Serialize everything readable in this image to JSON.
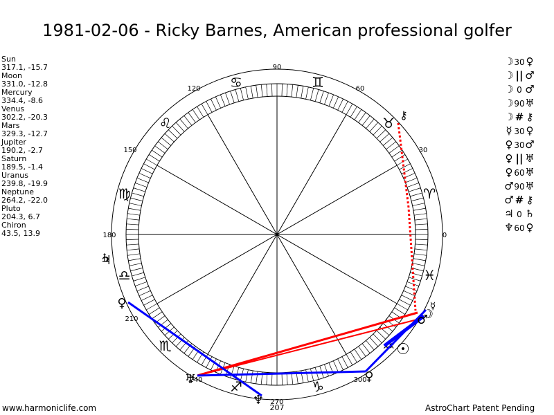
{
  "title": "1981-02-06 - Ricky Barnes, American professional golfer",
  "planets": [
    {
      "name": "Sun",
      "coords": "317.1, -15.7"
    },
    {
      "name": "Moon",
      "coords": "331.0, -12.8"
    },
    {
      "name": "Mercury",
      "coords": "334.4, -8.6"
    },
    {
      "name": "Venus",
      "coords": "302.2, -20.3"
    },
    {
      "name": "Mars",
      "coords": "329.3, -12.7"
    },
    {
      "name": "Jupiter",
      "coords": "190.2, -2.7"
    },
    {
      "name": "Saturn",
      "coords": "189.5, -1.4"
    },
    {
      "name": "Uranus",
      "coords": "239.8, -19.9"
    },
    {
      "name": "Neptune",
      "coords": "264.2, -22.0"
    },
    {
      "name": "Pluto",
      "coords": "204.3, 6.7"
    },
    {
      "name": "Chiron",
      "coords": "43.5, 13.9"
    }
  ],
  "aspects": [
    {
      "p1": "☽",
      "mid": "30",
      "p2": "♀"
    },
    {
      "p1": "☽",
      "mid": "||",
      "p2": "♂"
    },
    {
      "p1": "☽",
      "mid": "0",
      "p2": "♂"
    },
    {
      "p1": "☽",
      "mid": "90",
      "p2": "♅"
    },
    {
      "p1": "☽",
      "mid": "#",
      "p2": "⚷"
    },
    {
      "p1": "☿",
      "mid": "30",
      "p2": "♀"
    },
    {
      "p1": "♀",
      "mid": "30",
      "p2": "♂"
    },
    {
      "p1": "♀",
      "mid": "||",
      "p2": "♅"
    },
    {
      "p1": "♀",
      "mid": "60",
      "p2": "♅"
    },
    {
      "p1": "♂",
      "mid": "90",
      "p2": "♅"
    },
    {
      "p1": "♂",
      "mid": "#",
      "p2": "⚷"
    },
    {
      "p1": "♃",
      "mid": "0",
      "p2": "♄"
    },
    {
      "p1": "♆",
      "mid": "60",
      "p2": "♀"
    }
  ],
  "wheel": {
    "degree_labels": [
      "0",
      "30",
      "60",
      "90",
      "120",
      "150",
      "180",
      "210",
      "240",
      "270",
      "300"
    ],
    "extra_label": "207",
    "signs": [
      "♈",
      "♉",
      "♊",
      "♋",
      "♌",
      "♍",
      "♎",
      "♏",
      "♐",
      "♑",
      "♒",
      "♓"
    ],
    "planet_glyphs": {
      "sun": "☉",
      "moon": "☽",
      "mercury": "☿",
      "venus": "♀",
      "mars": "♂",
      "jupiter": "♃",
      "saturn": "♄",
      "uranus": "♅",
      "neptune": "♆",
      "pluto": "♇",
      "chiron": "⚷"
    }
  },
  "colors": {
    "red_aspect": "#ff0000",
    "blue_aspect": "#0000ff"
  },
  "footer": {
    "left": "www.harmoniclife.com",
    "right": "AstroChart Patent Pending"
  }
}
